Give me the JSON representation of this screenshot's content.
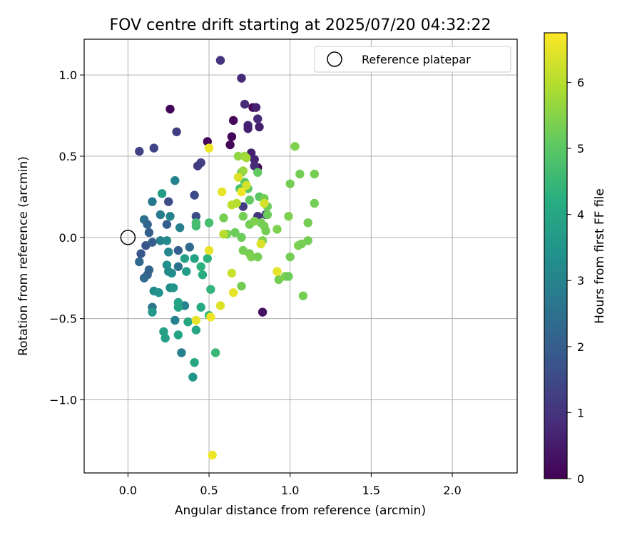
{
  "chart_data": {
    "type": "scatter",
    "title": "FOV centre drift starting at 2025/07/20 04:32:22",
    "xlabel": "Angular distance from reference (arcmin)",
    "ylabel": "Rotation from reference (arcmin)",
    "xlim": [
      -0.27,
      2.4
    ],
    "ylim": [
      -1.45,
      1.22
    ],
    "x_ticks": [
      0.0,
      0.5,
      1.0,
      1.5,
      2.0
    ],
    "x_tick_labels": [
      "0.0",
      "0.5",
      "1.0",
      "1.5",
      "2.0"
    ],
    "y_ticks": [
      -1.0,
      -0.5,
      0.0,
      0.5,
      1.0
    ],
    "y_tick_labels": [
      "−1.0",
      "−0.5",
      "0.0",
      "0.5",
      "1.0"
    ],
    "grid": true,
    "legend": {
      "position": "top-right",
      "entries": [
        {
          "label": "Reference platepar",
          "marker": "open-circle"
        }
      ]
    },
    "reference_point": {
      "x": 0.0,
      "y": 0.0
    },
    "colorbar": {
      "label": "Hours from first FF file",
      "colormap": "viridis",
      "range": [
        0,
        6.75
      ],
      "ticks": [
        0,
        1,
        2,
        3,
        4,
        5,
        6
      ],
      "tick_labels": [
        "0",
        "1",
        "2",
        "3",
        "4",
        "5",
        "6"
      ]
    },
    "points": [
      {
        "x": 0.26,
        "y": 0.79,
        "c": 0.1
      },
      {
        "x": 0.49,
        "y": 0.59,
        "c": 0.1
      },
      {
        "x": 0.65,
        "y": 0.72,
        "c": 0.1
      },
      {
        "x": 0.64,
        "y": 0.62,
        "c": 0.1
      },
      {
        "x": 0.77,
        "y": 0.8,
        "c": 0.1
      },
      {
        "x": 0.63,
        "y": 0.57,
        "c": 0.1
      },
      {
        "x": 0.8,
        "y": 0.43,
        "c": 0.1
      },
      {
        "x": 0.83,
        "y": -0.46,
        "c": 0.3
      },
      {
        "x": 0.57,
        "y": 1.09,
        "c": 1.0
      },
      {
        "x": 0.7,
        "y": 0.98,
        "c": 0.8
      },
      {
        "x": 0.72,
        "y": 0.82,
        "c": 0.8
      },
      {
        "x": 0.79,
        "y": 0.8,
        "c": 0.6
      },
      {
        "x": 0.8,
        "y": 0.73,
        "c": 0.8
      },
      {
        "x": 0.74,
        "y": 0.69,
        "c": 0.7
      },
      {
        "x": 0.74,
        "y": 0.67,
        "c": 0.6
      },
      {
        "x": 0.81,
        "y": 0.68,
        "c": 0.6
      },
      {
        "x": 0.76,
        "y": 0.52,
        "c": 0.6
      },
      {
        "x": 0.78,
        "y": 0.48,
        "c": 0.7
      },
      {
        "x": 0.78,
        "y": 0.44,
        "c": 0.8
      },
      {
        "x": 0.3,
        "y": 0.65,
        "c": 1.2
      },
      {
        "x": 0.07,
        "y": 0.53,
        "c": 1.3
      },
      {
        "x": 0.16,
        "y": 0.55,
        "c": 1.4
      },
      {
        "x": 0.45,
        "y": 0.46,
        "c": 1.3
      },
      {
        "x": 0.43,
        "y": 0.44,
        "c": 1.2
      },
      {
        "x": 0.41,
        "y": 0.26,
        "c": 1.5
      },
      {
        "x": 0.25,
        "y": 0.22,
        "c": 1.6
      },
      {
        "x": 0.42,
        "y": 0.13,
        "c": 1.6
      },
      {
        "x": 0.71,
        "y": 0.19,
        "c": 1.2
      },
      {
        "x": 0.8,
        "y": 0.13,
        "c": 1.0
      },
      {
        "x": 0.85,
        "y": 0.14,
        "c": 1.0
      },
      {
        "x": 0.24,
        "y": 0.08,
        "c": 2.0
      },
      {
        "x": 0.1,
        "y": 0.11,
        "c": 2.5
      },
      {
        "x": 0.12,
        "y": 0.08,
        "c": 2.2
      },
      {
        "x": 0.13,
        "y": 0.03,
        "c": 2.0
      },
      {
        "x": 0.11,
        "y": -0.05,
        "c": 1.8
      },
      {
        "x": 0.15,
        "y": -0.03,
        "c": 2.0
      },
      {
        "x": 0.08,
        "y": -0.1,
        "c": 1.8
      },
      {
        "x": 0.07,
        "y": -0.15,
        "c": 2.3
      },
      {
        "x": 0.13,
        "y": -0.2,
        "c": 2.2
      },
      {
        "x": 0.12,
        "y": -0.23,
        "c": 2.1
      },
      {
        "x": 0.1,
        "y": -0.25,
        "c": 2.3
      },
      {
        "x": 0.31,
        "y": -0.08,
        "c": 2.0
      },
      {
        "x": 0.38,
        "y": -0.06,
        "c": 2.3
      },
      {
        "x": 0.31,
        "y": -0.18,
        "c": 2.5
      },
      {
        "x": 0.15,
        "y": -0.43,
        "c": 2.6
      },
      {
        "x": 0.15,
        "y": 0.22,
        "c": 2.7
      },
      {
        "x": 0.2,
        "y": 0.14,
        "c": 2.8
      },
      {
        "x": 0.26,
        "y": 0.13,
        "c": 3.0
      },
      {
        "x": 0.32,
        "y": 0.06,
        "c": 2.9
      },
      {
        "x": 0.29,
        "y": 0.35,
        "c": 3.0
      },
      {
        "x": 0.2,
        "y": -0.02,
        "c": 3.0
      },
      {
        "x": 0.24,
        "y": -0.02,
        "c": 3.2
      },
      {
        "x": 0.25,
        "y": -0.09,
        "c": 3.1
      },
      {
        "x": 0.24,
        "y": -0.17,
        "c": 3.4
      },
      {
        "x": 0.25,
        "y": -0.21,
        "c": 3.2
      },
      {
        "x": 0.27,
        "y": -0.22,
        "c": 3.3
      },
      {
        "x": 0.26,
        "y": -0.31,
        "c": 3.2
      },
      {
        "x": 0.28,
        "y": -0.31,
        "c": 3.5
      },
      {
        "x": 0.16,
        "y": -0.33,
        "c": 3.3
      },
      {
        "x": 0.19,
        "y": -0.34,
        "c": 3.4
      },
      {
        "x": 0.15,
        "y": -0.46,
        "c": 3.6
      },
      {
        "x": 0.29,
        "y": -0.51,
        "c": 2.9
      },
      {
        "x": 0.33,
        "y": -0.71,
        "c": 2.9
      },
      {
        "x": 0.35,
        "y": -0.42,
        "c": 3.0
      },
      {
        "x": 0.4,
        "y": -0.86,
        "c": 3.5
      },
      {
        "x": 0.21,
        "y": 0.27,
        "c": 3.7
      },
      {
        "x": 0.35,
        "y": -0.13,
        "c": 3.8
      },
      {
        "x": 0.36,
        "y": -0.21,
        "c": 3.7
      },
      {
        "x": 0.41,
        "y": -0.13,
        "c": 3.9
      },
      {
        "x": 0.31,
        "y": -0.4,
        "c": 3.9
      },
      {
        "x": 0.31,
        "y": -0.43,
        "c": 3.9
      },
      {
        "x": 0.31,
        "y": -0.6,
        "c": 3.9
      },
      {
        "x": 0.22,
        "y": -0.58,
        "c": 3.8
      },
      {
        "x": 0.23,
        "y": -0.62,
        "c": 3.8
      },
      {
        "x": 0.37,
        "y": -0.52,
        "c": 4.0
      },
      {
        "x": 0.41,
        "y": -0.77,
        "c": 4.0
      },
      {
        "x": 0.42,
        "y": -0.57,
        "c": 4.0
      },
      {
        "x": 0.45,
        "y": -0.43,
        "c": 4.1
      },
      {
        "x": 0.46,
        "y": -0.23,
        "c": 4.2
      },
      {
        "x": 0.45,
        "y": -0.18,
        "c": 4.3
      },
      {
        "x": 0.49,
        "y": -0.13,
        "c": 4.3
      },
      {
        "x": 0.51,
        "y": -0.32,
        "c": 4.4
      },
      {
        "x": 0.5,
        "y": -0.48,
        "c": 4.5
      },
      {
        "x": 0.54,
        "y": -0.71,
        "c": 4.5
      },
      {
        "x": 0.42,
        "y": 0.07,
        "c": 4.6
      },
      {
        "x": 0.42,
        "y": 0.09,
        "c": 4.7
      },
      {
        "x": 0.5,
        "y": 0.09,
        "c": 4.7
      },
      {
        "x": 0.69,
        "y": 0.3,
        "c": 4.8
      },
      {
        "x": 0.7,
        "y": 0.4,
        "c": 5.0
      },
      {
        "x": 0.72,
        "y": 0.34,
        "c": 5.0
      },
      {
        "x": 0.74,
        "y": 0.3,
        "c": 5.0
      },
      {
        "x": 0.81,
        "y": 0.25,
        "c": 5.0
      },
      {
        "x": 0.75,
        "y": 0.23,
        "c": 5.1
      },
      {
        "x": 0.8,
        "y": 0.4,
        "c": 5.1
      },
      {
        "x": 0.86,
        "y": 0.19,
        "c": 5.2
      },
      {
        "x": 0.84,
        "y": 0.24,
        "c": 5.3
      },
      {
        "x": 0.82,
        "y": 0.09,
        "c": 5.3
      },
      {
        "x": 0.84,
        "y": 0.07,
        "c": 5.3
      },
      {
        "x": 0.86,
        "y": 0.14,
        "c": 5.2
      },
      {
        "x": 0.85,
        "y": 0.04,
        "c": 5.3
      },
      {
        "x": 0.92,
        "y": 0.05,
        "c": 5.4
      },
      {
        "x": 0.75,
        "y": 0.08,
        "c": 5.3
      },
      {
        "x": 0.78,
        "y": 0.1,
        "c": 5.4
      },
      {
        "x": 0.71,
        "y": 0.13,
        "c": 5.3
      },
      {
        "x": 0.66,
        "y": 0.03,
        "c": 5.2
      },
      {
        "x": 0.61,
        "y": 0.02,
        "c": 5.3
      },
      {
        "x": 0.59,
        "y": 0.12,
        "c": 5.3
      },
      {
        "x": 0.7,
        "y": 0.0,
        "c": 5.2
      },
      {
        "x": 0.71,
        "y": -0.08,
        "c": 5.3
      },
      {
        "x": 0.75,
        "y": -0.1,
        "c": 5.3
      },
      {
        "x": 0.76,
        "y": -0.12,
        "c": 5.4
      },
      {
        "x": 0.8,
        "y": -0.12,
        "c": 5.3
      },
      {
        "x": 0.83,
        "y": -0.02,
        "c": 5.4
      },
      {
        "x": 0.7,
        "y": -0.3,
        "c": 5.3
      },
      {
        "x": 0.93,
        "y": -0.26,
        "c": 5.3
      },
      {
        "x": 0.97,
        "y": -0.24,
        "c": 5.4
      },
      {
        "x": 0.99,
        "y": -0.24,
        "c": 5.2
      },
      {
        "x": 1.0,
        "y": -0.12,
        "c": 5.3
      },
      {
        "x": 0.99,
        "y": 0.13,
        "c": 5.4
      },
      {
        "x": 1.0,
        "y": 0.33,
        "c": 5.3
      },
      {
        "x": 1.03,
        "y": 0.56,
        "c": 5.4
      },
      {
        "x": 1.06,
        "y": 0.39,
        "c": 5.3
      },
      {
        "x": 1.05,
        "y": -0.05,
        "c": 5.4
      },
      {
        "x": 1.07,
        "y": -0.04,
        "c": 5.3
      },
      {
        "x": 1.08,
        "y": -0.36,
        "c": 5.3
      },
      {
        "x": 1.11,
        "y": -0.02,
        "c": 5.3
      },
      {
        "x": 1.11,
        "y": 0.09,
        "c": 5.3
      },
      {
        "x": 1.15,
        "y": 0.21,
        "c": 5.3
      },
      {
        "x": 1.15,
        "y": 0.39,
        "c": 5.3
      },
      {
        "x": 0.68,
        "y": 0.5,
        "c": 5.6
      },
      {
        "x": 0.72,
        "y": 0.5,
        "c": 5.7
      },
      {
        "x": 0.73,
        "y": 0.49,
        "c": 5.8
      },
      {
        "x": 0.71,
        "y": 0.41,
        "c": 5.7
      },
      {
        "x": 0.68,
        "y": 0.37,
        "c": 6.4
      },
      {
        "x": 0.73,
        "y": 0.32,
        "c": 6.3
      },
      {
        "x": 0.7,
        "y": 0.28,
        "c": 6.6
      },
      {
        "x": 0.64,
        "y": 0.2,
        "c": 6.1
      },
      {
        "x": 0.67,
        "y": 0.21,
        "c": 6.0
      },
      {
        "x": 0.58,
        "y": 0.28,
        "c": 6.5
      },
      {
        "x": 0.84,
        "y": 0.21,
        "c": 6.3
      },
      {
        "x": 0.82,
        "y": -0.04,
        "c": 6.4
      },
      {
        "x": 0.59,
        "y": 0.02,
        "c": 6.0
      },
      {
        "x": 0.5,
        "y": -0.08,
        "c": 6.5
      },
      {
        "x": 0.5,
        "y": 0.55,
        "c": 6.6
      },
      {
        "x": 0.64,
        "y": -0.22,
        "c": 6.2
      },
      {
        "x": 0.65,
        "y": -0.34,
        "c": 6.5
      },
      {
        "x": 0.57,
        "y": -0.42,
        "c": 6.4
      },
      {
        "x": 0.51,
        "y": -0.49,
        "c": 6.6
      },
      {
        "x": 0.42,
        "y": -0.51,
        "c": 6.5
      },
      {
        "x": 0.92,
        "y": -0.21,
        "c": 6.5
      },
      {
        "x": 0.52,
        "y": -1.34,
        "c": 6.6
      }
    ]
  }
}
